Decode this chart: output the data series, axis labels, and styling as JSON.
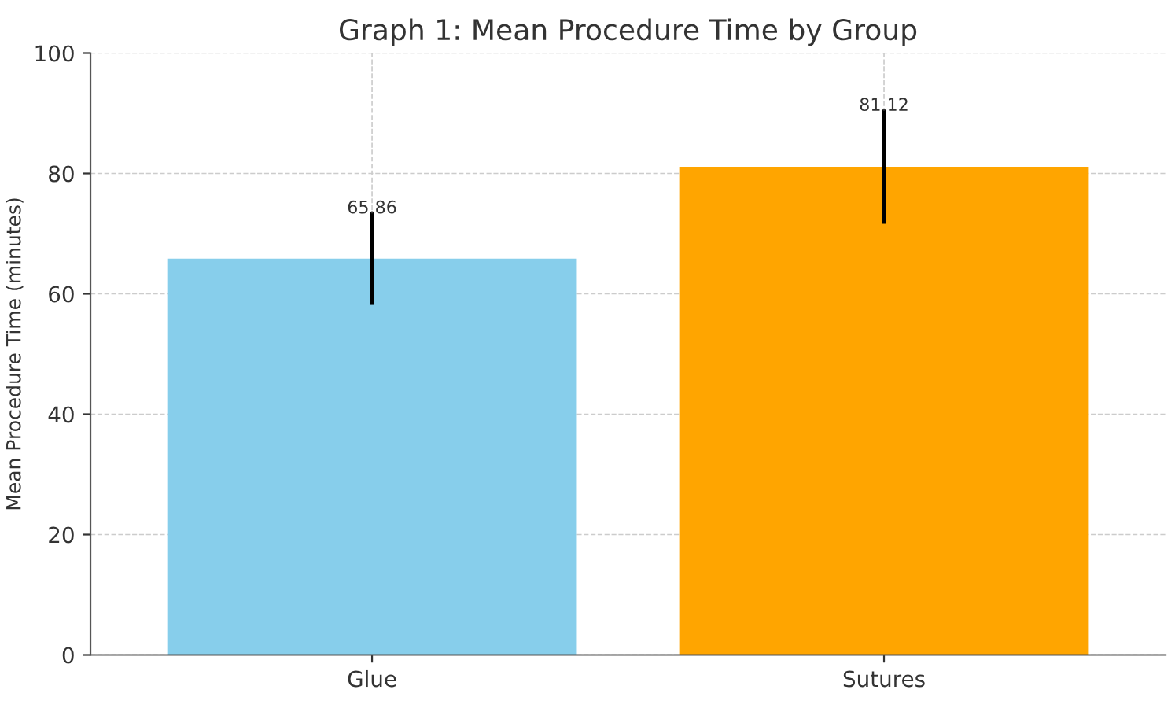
{
  "chart_data": {
    "type": "bar",
    "title": "Graph 1: Mean Procedure Time by Group",
    "ylabel": "Mean Procedure Time (minutes)",
    "categories": [
      "Glue",
      "Sutures"
    ],
    "values": [
      65.86,
      81.12
    ],
    "colors": [
      "#87ceeb",
      "#ffa500"
    ],
    "errors": [
      7.7,
      9.5
    ],
    "data_labels": true,
    "ylim": [
      0,
      100
    ],
    "yticks": [
      0,
      20,
      40,
      60,
      80,
      100
    ],
    "grid": true
  }
}
